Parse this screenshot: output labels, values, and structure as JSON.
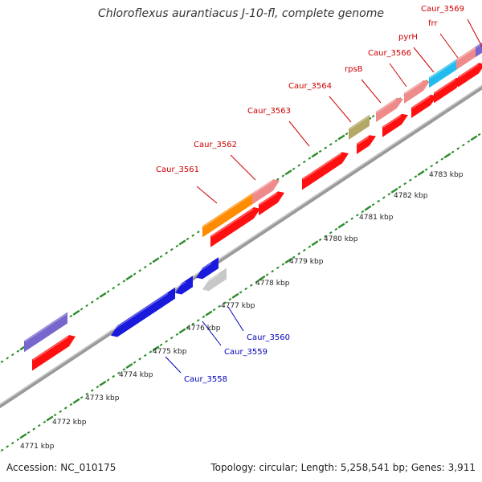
{
  "title": "Chloroflexus aurantiacus J-10-fl, complete genome",
  "footer": {
    "accession": "Accession: NC_010175",
    "summary": "Topology: circular; Length: 5,258,541 bp; Genes: 3,911"
  },
  "colors": {
    "forward_cds": "#ff1010",
    "forward_cds_light": "#ee8a8a",
    "reverse_cds": "#1a1adc",
    "backbone": "#8a8a8a",
    "ticks": "#2a8a2a",
    "forward_label": "#cc0000",
    "reverse_label": "#0000bb"
  },
  "scale_labels": [
    "4771 kbp",
    "4772 kbp",
    "4773 kbp",
    "4774 kbp",
    "4775 kbp",
    "4776 kbp",
    "4777 kbp",
    "4778 kbp",
    "4779 kbp",
    "4780 kbp",
    "4781 kbp",
    "4782 kbp",
    "4783 kbp"
  ],
  "forward_genes": [
    {
      "label": "Caur_3561"
    },
    {
      "label": "Caur_3562"
    },
    {
      "label": "Caur_3563"
    },
    {
      "label": "Caur_3564"
    },
    {
      "label": "rpsB"
    },
    {
      "label": "Caur_3566"
    },
    {
      "label": "pyrH"
    },
    {
      "label": "frr"
    },
    {
      "label": "Caur_3569"
    }
  ],
  "reverse_genes": [
    {
      "label": "Caur_3558"
    },
    {
      "label": "Caur_3559"
    },
    {
      "label": "Caur_3560"
    }
  ]
}
